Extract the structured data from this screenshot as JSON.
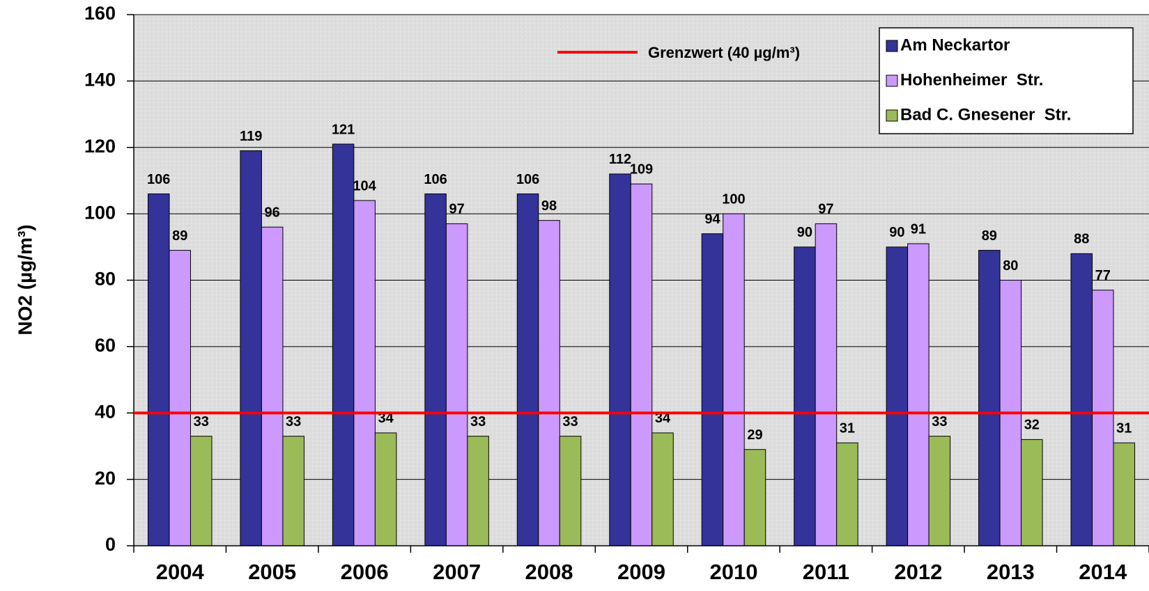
{
  "chart_data": {
    "type": "bar",
    "y_label": "NO2 (µg/m³)",
    "categories": [
      "2004",
      "2005",
      "2006",
      "2007",
      "2008",
      "2009",
      "2010",
      "2011",
      "2012",
      "2013",
      "2014"
    ],
    "series": [
      {
        "name": "Am Neckartor",
        "color": "#333399",
        "values": [
          106,
          119,
          121,
          106,
          106,
          112,
          94,
          90,
          90,
          89,
          88
        ]
      },
      {
        "name": "Hohenheimer  Str.",
        "color": "#cc99ff",
        "values": [
          89,
          96,
          104,
          97,
          98,
          109,
          100,
          97,
          91,
          80,
          77
        ]
      },
      {
        "name": "Bad C. Gnesener  Str.",
        "color": "#9bbb59",
        "values": [
          33,
          33,
          34,
          33,
          33,
          34,
          29,
          31,
          33,
          32,
          31
        ]
      }
    ],
    "reference_line": {
      "value": 40,
      "label": "Grenzwert (40 µg/m³)",
      "color": "#ff0000"
    },
    "ylim": [
      0,
      160
    ],
    "yticks": [
      0,
      20,
      40,
      60,
      80,
      100,
      120,
      140,
      160
    ],
    "grid": true,
    "legend": "top-right"
  }
}
